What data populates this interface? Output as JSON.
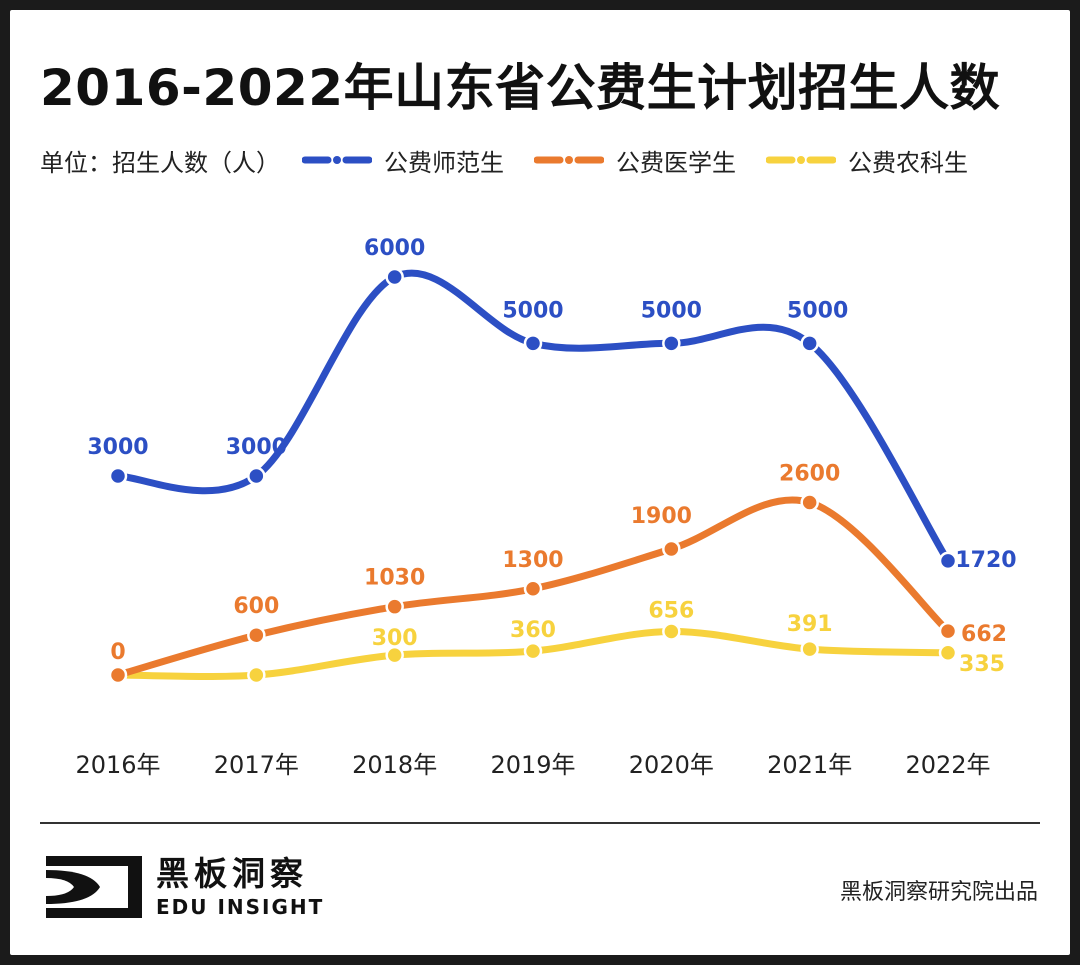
{
  "title": "2016-2022年山东省公费生计划招生人数",
  "unit_label": "单位：招生人数（人）",
  "brand": {
    "cn": "黑板洞察",
    "en": "EDU INSIGHT",
    "credit": "黑板洞察研究院出品"
  },
  "colors": {
    "teacher": "#2c4fc4",
    "medical": "#ea7a2e",
    "agri": "#f7d23e"
  },
  "chart_data": {
    "type": "line",
    "title": "2016-2022年山东省公费生计划招生人数",
    "xlabel": "",
    "ylabel": "招生人数（人）",
    "categories": [
      "2016年",
      "2017年",
      "2018年",
      "2019年",
      "2020年",
      "2021年",
      "2022年"
    ],
    "ylim": [
      0,
      6000
    ],
    "grid": false,
    "legend_position": "top",
    "series": [
      {
        "key": "teacher",
        "name": "公费师范生",
        "color": "#2c4fc4",
        "values": [
          3000,
          3000,
          6000,
          5000,
          5000,
          5000,
          1720
        ],
        "labels": [
          "3000",
          "3000",
          "6000",
          "5000",
          "5000",
          "5000",
          "1720"
        ]
      },
      {
        "key": "medical",
        "name": "公费医学生",
        "color": "#ea7a2e",
        "values": [
          0,
          600,
          1030,
          1300,
          1900,
          2600,
          662
        ],
        "labels": [
          "0",
          "600",
          "1030",
          "1300",
          "1900",
          "2600",
          "662"
        ]
      },
      {
        "key": "agri",
        "name": "公费农科生",
        "color": "#f7d23e",
        "values": [
          0,
          0,
          300,
          360,
          656,
          391,
          335
        ],
        "labels": [
          "",
          "",
          "300",
          "360",
          "656",
          "391",
          "335"
        ]
      }
    ]
  }
}
